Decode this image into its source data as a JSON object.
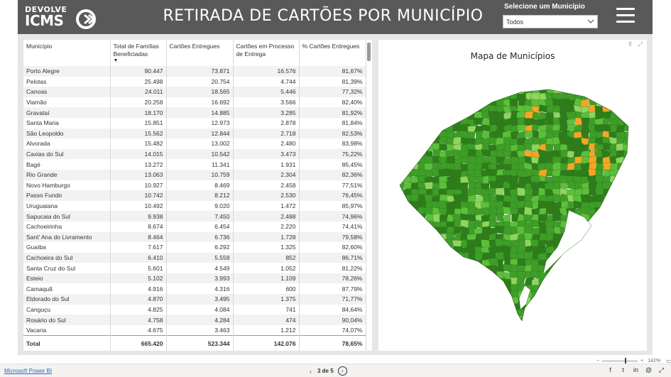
{
  "header": {
    "logo_line1": "DEVOLVE",
    "logo_line2": "ICMS",
    "title": "RETIRADA DE CARTÕES POR MUNICÍPIO",
    "slicer_label": "Selecione um Município",
    "slicer_value": "Todos"
  },
  "table": {
    "columns": [
      "Município",
      "Total de Famílias Beneficiadas",
      "Cartões Entregues",
      "Cartões em Processo de Entrega",
      "% Cartões Entregues"
    ],
    "rows": [
      [
        "Porto Alegre",
        "90.447",
        "73.871",
        "16.576",
        "81,67%"
      ],
      [
        "Pelotas",
        "25.498",
        "20.754",
        "4.744",
        "81,39%"
      ],
      [
        "Canoas",
        "24.011",
        "18.565",
        "5.446",
        "77,32%"
      ],
      [
        "Viamão",
        "20.258",
        "16.692",
        "3.566",
        "82,40%"
      ],
      [
        "Gravataí",
        "18.170",
        "14.885",
        "3.285",
        "81,92%"
      ],
      [
        "Santa Maria",
        "15.851",
        "12.973",
        "2.878",
        "81,84%"
      ],
      [
        "São Leopoldo",
        "15.562",
        "12.844",
        "2.718",
        "82,53%"
      ],
      [
        "Alvorada",
        "15.482",
        "13.002",
        "2.480",
        "83,98%"
      ],
      [
        "Caxias do Sul",
        "14.015",
        "10.542",
        "3.473",
        "75,22%"
      ],
      [
        "Bagé",
        "13.272",
        "11.341",
        "1.931",
        "85,45%"
      ],
      [
        "Rio Grande",
        "13.063",
        "10.759",
        "2.304",
        "82,36%"
      ],
      [
        "Novo Hamburgo",
        "10.927",
        "8.469",
        "2.458",
        "77,51%"
      ],
      [
        "Passo Fundo",
        "10.742",
        "8.212",
        "2.530",
        "76,45%"
      ],
      [
        "Uruguaiana",
        "10.492",
        "9.020",
        "1.472",
        "85,97%"
      ],
      [
        "Sapucaia do Sul",
        "9.938",
        "7.450",
        "2.488",
        "74,96%"
      ],
      [
        "Cachoeirinha",
        "8.674",
        "6.454",
        "2.220",
        "74,41%"
      ],
      [
        "Sant' Ana do Livramento",
        "8.464",
        "6.736",
        "1.728",
        "79,58%"
      ],
      [
        "Guaíba",
        "7.617",
        "6.292",
        "1.325",
        "82,60%"
      ],
      [
        "Cachoeira do Sul",
        "6.410",
        "5.558",
        "852",
        "86,71%"
      ],
      [
        "Santa Cruz do Sul",
        "5.601",
        "4.549",
        "1.052",
        "81,22%"
      ],
      [
        "Esteio",
        "5.102",
        "3.993",
        "1.109",
        "78,26%"
      ],
      [
        "Camaquã",
        "4.916",
        "4.316",
        "600",
        "87,79%"
      ],
      [
        "Eldorado do Sul",
        "4.870",
        "3.495",
        "1.375",
        "71,77%"
      ],
      [
        "Canguçu",
        "4.825",
        "4.084",
        "741",
        "84,64%"
      ],
      [
        "Rosário do Sul",
        "4.758",
        "4.284",
        "474",
        "90,04%"
      ],
      [
        "Vacaria",
        "4.675",
        "3.463",
        "1.212",
        "74,07%"
      ]
    ],
    "totals": [
      "Total",
      "665.420",
      "523.344",
      "142.076",
      "78,65%"
    ]
  },
  "map": {
    "title": "Mapa de Municípios",
    "colors": {
      "dark": "#2e7d1a",
      "mid": "#3e9e28",
      "light": "#5cbf3a",
      "pale": "#8fd45f",
      "highlight": "#f5a623"
    }
  },
  "footer": {
    "zoom_level": "142%",
    "powerbi_link": "Microsoft Power BI",
    "page_indicator": "3 de 5"
  },
  "colors": {
    "header_bg": "#595959",
    "canvas_bg": "#e6e6e6"
  }
}
